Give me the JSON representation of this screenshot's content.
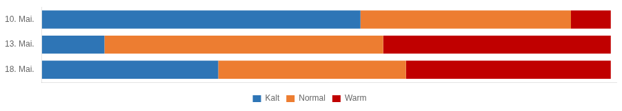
{
  "chart_data": {
    "type": "bar",
    "orientation": "horizontal",
    "stacked": true,
    "categories": [
      "10. Mai.",
      "13. Mai.",
      "18. Mai."
    ],
    "series": [
      {
        "name": "Kalt",
        "color": "#2E75B6",
        "values": [
          56,
          11,
          31
        ]
      },
      {
        "name": "Normal",
        "color": "#ED7D31",
        "values": [
          37,
          49,
          33
        ]
      },
      {
        "name": "Warm",
        "color": "#C00000",
        "values": [
          7,
          40,
          36
        ]
      }
    ],
    "xlim": [
      0,
      101
    ],
    "grid": false,
    "legend": "bottom",
    "tick_labels": "y"
  }
}
